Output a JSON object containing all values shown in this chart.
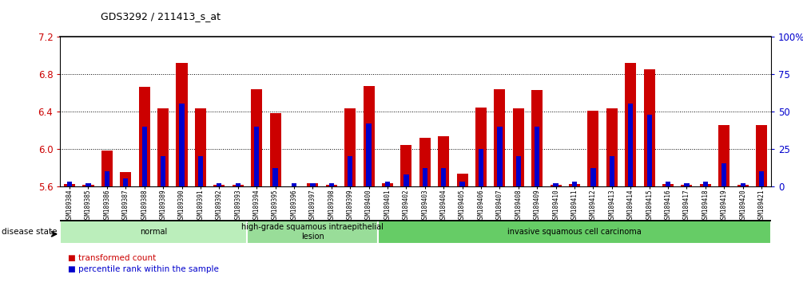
{
  "title": "GDS3292 / 211413_s_at",
  "samples": [
    "GSM189384",
    "GSM189385",
    "GSM189386",
    "GSM189387",
    "GSM189388",
    "GSM189389",
    "GSM189390",
    "GSM189391",
    "GSM189392",
    "GSM189393",
    "GSM189394",
    "GSM189395",
    "GSM189396",
    "GSM189397",
    "GSM189398",
    "GSM189399",
    "GSM189400",
    "GSM189401",
    "GSM189402",
    "GSM189403",
    "GSM189404",
    "GSM189405",
    "GSM189406",
    "GSM189407",
    "GSM189408",
    "GSM189409",
    "GSM189410",
    "GSM189411",
    "GSM189412",
    "GSM189413",
    "GSM189414",
    "GSM189415",
    "GSM189416",
    "GSM189417",
    "GSM189418",
    "GSM189419",
    "GSM189420",
    "GSM189421"
  ],
  "transformed_count": [
    5.62,
    5.61,
    5.98,
    5.75,
    6.66,
    6.43,
    6.92,
    6.43,
    5.61,
    5.61,
    6.64,
    6.38,
    5.57,
    5.63,
    5.61,
    6.43,
    6.67,
    5.63,
    6.04,
    6.12,
    6.13,
    5.73,
    6.44,
    6.64,
    6.43,
    6.63,
    5.61,
    5.62,
    6.41,
    6.43,
    6.92,
    6.85,
    5.62,
    5.61,
    5.62,
    6.25,
    5.61,
    6.25
  ],
  "percentile_rank": [
    3,
    2,
    10,
    5,
    40,
    20,
    55,
    20,
    2,
    2,
    40,
    12,
    2,
    2,
    2,
    20,
    42,
    3,
    8,
    12,
    12,
    3,
    25,
    40,
    20,
    40,
    2,
    3,
    12,
    20,
    55,
    48,
    3,
    2,
    3,
    15,
    2,
    10
  ],
  "ylim_left": [
    5.6,
    7.2
  ],
  "ylim_right": [
    0,
    100
  ],
  "yticks_left": [
    5.6,
    6.0,
    6.4,
    6.8,
    7.2
  ],
  "yticks_right": [
    0,
    25,
    50,
    75,
    100
  ],
  "ytick_labels_right": [
    "0",
    "25",
    "50",
    "75",
    "100%"
  ],
  "bar_color": "#cc0000",
  "percentile_color": "#0000cc",
  "groups": [
    {
      "label": "normal",
      "start": 0,
      "end": 9,
      "color": "#bbeebb"
    },
    {
      "label": "high-grade squamous intraepithelial\nlesion",
      "start": 10,
      "end": 16,
      "color": "#99dd99"
    },
    {
      "label": "invasive squamous cell carcinoma",
      "start": 17,
      "end": 37,
      "color": "#66cc66"
    }
  ],
  "disease_state_label": "disease state",
  "legend_red": "transformed count",
  "legend_blue": "percentile rank within the sample",
  "background_plot": "#ffffff",
  "tick_area_color": "#cccccc"
}
